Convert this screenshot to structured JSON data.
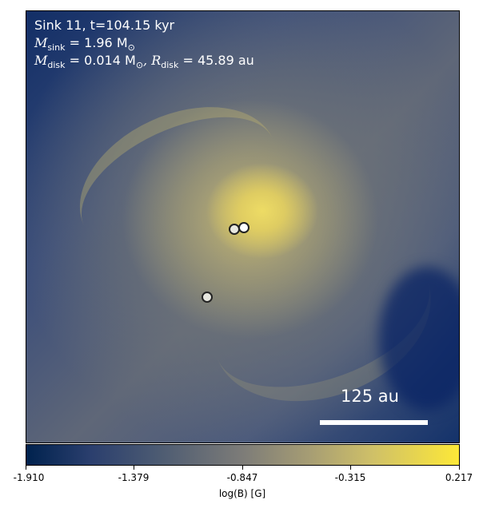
{
  "header": {
    "line1": "Sink 11, t=104.15 kyr",
    "m_sink_symbol": "M",
    "m_sink_sub": "sink",
    "m_sink_value": " = 1.96 M",
    "m_sink_unit_sub": "⊙",
    "m_disk_symbol": "M",
    "m_disk_sub": "disk",
    "m_disk_value": " = 0.014 M",
    "m_disk_unit_sub": "⊙",
    "r_disk_symbol": ", R",
    "r_disk_sub": "disk",
    "r_disk_value": " = 45.89 au"
  },
  "scale_bar": {
    "label": "125 au"
  },
  "colorbar": {
    "ticks": [
      "-1.910",
      "-1.379",
      "-0.847",
      "-0.315",
      "0.217"
    ],
    "label": "log(B) [G]",
    "colormap": "cividis"
  }
}
